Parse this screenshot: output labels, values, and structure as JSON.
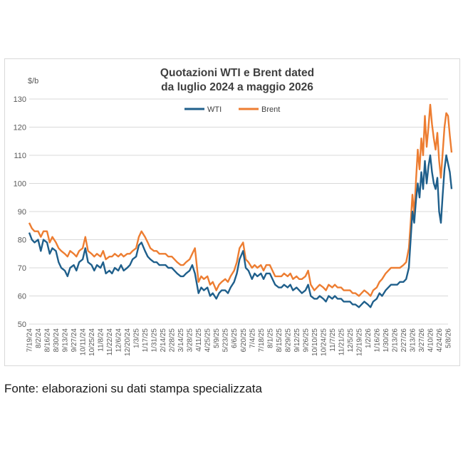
{
  "chart_data": {
    "type": "line",
    "title": [
      "Quotazioni WTI e Brent dated",
      "da luglio 2024 a maggio 2026"
    ],
    "ylabel": "$/b",
    "xlabel": "",
    "ylim": [
      50,
      130
    ],
    "yticks": [
      "50",
      "60",
      "70",
      "80",
      "90",
      "100",
      "110",
      "120",
      "130"
    ],
    "grid": "horizontal",
    "legend_position": "top-center",
    "x_ticks": [
      "7/19/24",
      "8/2/24",
      "8/16/24",
      "8/30/24",
      "9/13/24",
      "9/27/24",
      "10/11/24",
      "10/25/24",
      "11/8/24",
      "11/22/24",
      "12/6/24",
      "12/20/24",
      "1/3/25",
      "1/17/25",
      "1/31/25",
      "2/14/25",
      "2/28/25",
      "3/14/25",
      "3/28/25",
      "4/11/25",
      "4/25/25",
      "5/9/25",
      "5/23/25",
      "6/6/25",
      "6/20/25",
      "7/4/25",
      "7/18/25",
      "8/1/25",
      "8/15/25",
      "8/29/25",
      "9/12/25",
      "9/26/25",
      "10/10/25",
      "10/24/25",
      "11/7/25",
      "11/21/25",
      "12/5/25",
      "12/19/25",
      "1/2/26",
      "1/16/26",
      "1/30/26",
      "2/13/26",
      "2/27/26",
      "3/13/26",
      "3/27/26",
      "4/10/26",
      "4/24/26",
      "5/8/26"
    ],
    "series": [
      {
        "name": "WTI",
        "color": "#1f5f8b",
        "points": [
          [
            0,
            82.5
          ],
          [
            0.3,
            80
          ],
          [
            0.6,
            79
          ],
          [
            1,
            80
          ],
          [
            1.3,
            76
          ],
          [
            1.6,
            80
          ],
          [
            2,
            79
          ],
          [
            2.3,
            75
          ],
          [
            2.6,
            77
          ],
          [
            3,
            76
          ],
          [
            3.3,
            72
          ],
          [
            3.6,
            70
          ],
          [
            4,
            69
          ],
          [
            4.3,
            67
          ],
          [
            4.6,
            70
          ],
          [
            5,
            71
          ],
          [
            5.3,
            69
          ],
          [
            5.6,
            72
          ],
          [
            6,
            73
          ],
          [
            6.3,
            77
          ],
          [
            6.6,
            72
          ],
          [
            7,
            71
          ],
          [
            7.3,
            69
          ],
          [
            7.6,
            71
          ],
          [
            8,
            70
          ],
          [
            8.3,
            72
          ],
          [
            8.6,
            68
          ],
          [
            9,
            69
          ],
          [
            9.3,
            68
          ],
          [
            9.6,
            70
          ],
          [
            10,
            69
          ],
          [
            10.3,
            71
          ],
          [
            10.6,
            69
          ],
          [
            11,
            70
          ],
          [
            11.3,
            71
          ],
          [
            11.6,
            73
          ],
          [
            12,
            74
          ],
          [
            12.3,
            78
          ],
          [
            12.6,
            79
          ],
          [
            13,
            76
          ],
          [
            13.3,
            74
          ],
          [
            13.6,
            73
          ],
          [
            14,
            72
          ],
          [
            14.3,
            72
          ],
          [
            14.6,
            71
          ],
          [
            15,
            71
          ],
          [
            15.3,
            71
          ],
          [
            15.6,
            70
          ],
          [
            16,
            70
          ],
          [
            16.3,
            69
          ],
          [
            16.6,
            68
          ],
          [
            17,
            67
          ],
          [
            17.3,
            67
          ],
          [
            17.6,
            68
          ],
          [
            18,
            69
          ],
          [
            18.3,
            71
          ],
          [
            18.6,
            68
          ],
          [
            19,
            61
          ],
          [
            19.3,
            63
          ],
          [
            19.6,
            62
          ],
          [
            20,
            63
          ],
          [
            20.3,
            60
          ],
          [
            20.6,
            61
          ],
          [
            21,
            59
          ],
          [
            21.3,
            61
          ],
          [
            21.6,
            62
          ],
          [
            22,
            62
          ],
          [
            22.3,
            61
          ],
          [
            22.6,
            63
          ],
          [
            23,
            65
          ],
          [
            23.3,
            68
          ],
          [
            23.6,
            73
          ],
          [
            24,
            76
          ],
          [
            24.3,
            70
          ],
          [
            24.6,
            69
          ],
          [
            25,
            66
          ],
          [
            25.3,
            68
          ],
          [
            25.6,
            67
          ],
          [
            26,
            68
          ],
          [
            26.3,
            66
          ],
          [
            26.6,
            68
          ],
          [
            27,
            68
          ],
          [
            27.3,
            66
          ],
          [
            27.6,
            64
          ],
          [
            28,
            63
          ],
          [
            28.3,
            63
          ],
          [
            28.6,
            64
          ],
          [
            29,
            63
          ],
          [
            29.3,
            64
          ],
          [
            29.6,
            62
          ],
          [
            30,
            63
          ],
          [
            30.3,
            62
          ],
          [
            30.6,
            61
          ],
          [
            31,
            62
          ],
          [
            31.3,
            64
          ],
          [
            31.6,
            60
          ],
          [
            32,
            59
          ],
          [
            32.3,
            59
          ],
          [
            32.6,
            60
          ],
          [
            33,
            59
          ],
          [
            33.3,
            58
          ],
          [
            33.6,
            60
          ],
          [
            34,
            59
          ],
          [
            34.3,
            60
          ],
          [
            34.6,
            59
          ],
          [
            35,
            59
          ],
          [
            35.3,
            58
          ],
          [
            35.6,
            58
          ],
          [
            36,
            58
          ],
          [
            36.3,
            57
          ],
          [
            36.6,
            57
          ],
          [
            37,
            56
          ],
          [
            37.3,
            57
          ],
          [
            37.6,
            58
          ],
          [
            38,
            57
          ],
          [
            38.3,
            56
          ],
          [
            38.6,
            58
          ],
          [
            39,
            59
          ],
          [
            39.3,
            61
          ],
          [
            39.6,
            60
          ],
          [
            40,
            62
          ],
          [
            40.3,
            63
          ],
          [
            40.6,
            64
          ],
          [
            41,
            64
          ],
          [
            41.3,
            64
          ],
          [
            41.6,
            65
          ],
          [
            42,
            65
          ],
          [
            42.3,
            66
          ],
          [
            42.6,
            70
          ],
          [
            42.8,
            80
          ],
          [
            43,
            90
          ],
          [
            43.2,
            86
          ],
          [
            43.4,
            94
          ],
          [
            43.6,
            100
          ],
          [
            43.8,
            95
          ],
          [
            44,
            104
          ],
          [
            44.2,
            98
          ],
          [
            44.4,
            108
          ],
          [
            44.6,
            100
          ],
          [
            44.8,
            106
          ],
          [
            45,
            110
          ],
          [
            45.2,
            104
          ],
          [
            45.4,
            100
          ],
          [
            45.6,
            98
          ],
          [
            45.8,
            102
          ],
          [
            46,
            90
          ],
          [
            46.2,
            86
          ],
          [
            46.4,
            96
          ],
          [
            46.6,
            105
          ],
          [
            46.8,
            110
          ],
          [
            47,
            107
          ],
          [
            47.2,
            104
          ],
          [
            47.4,
            98
          ]
        ]
      },
      {
        "name": "Brent",
        "color": "#ed7d31",
        "points": [
          [
            0,
            86
          ],
          [
            0.3,
            84
          ],
          [
            0.6,
            83
          ],
          [
            1,
            83
          ],
          [
            1.3,
            81
          ],
          [
            1.6,
            83
          ],
          [
            2,
            83
          ],
          [
            2.3,
            79
          ],
          [
            2.6,
            81
          ],
          [
            3,
            79
          ],
          [
            3.3,
            77
          ],
          [
            3.6,
            76
          ],
          [
            4,
            75
          ],
          [
            4.3,
            74
          ],
          [
            4.6,
            76
          ],
          [
            5,
            75
          ],
          [
            5.3,
            74
          ],
          [
            5.6,
            76
          ],
          [
            6,
            77
          ],
          [
            6.3,
            81
          ],
          [
            6.6,
            76
          ],
          [
            7,
            75
          ],
          [
            7.3,
            74
          ],
          [
            7.6,
            75
          ],
          [
            8,
            74
          ],
          [
            8.3,
            76
          ],
          [
            8.6,
            73
          ],
          [
            9,
            74
          ],
          [
            9.3,
            74
          ],
          [
            9.6,
            75
          ],
          [
            10,
            74
          ],
          [
            10.3,
            75
          ],
          [
            10.6,
            74
          ],
          [
            11,
            75
          ],
          [
            11.3,
            75
          ],
          [
            11.6,
            76
          ],
          [
            12,
            77
          ],
          [
            12.3,
            81
          ],
          [
            12.6,
            83
          ],
          [
            13,
            81
          ],
          [
            13.3,
            79
          ],
          [
            13.6,
            77
          ],
          [
            14,
            76
          ],
          [
            14.3,
            76
          ],
          [
            14.6,
            75
          ],
          [
            15,
            75
          ],
          [
            15.3,
            75
          ],
          [
            15.6,
            74
          ],
          [
            16,
            74
          ],
          [
            16.3,
            73
          ],
          [
            16.6,
            72
          ],
          [
            17,
            71
          ],
          [
            17.3,
            71
          ],
          [
            17.6,
            72
          ],
          [
            18,
            73
          ],
          [
            18.3,
            75
          ],
          [
            18.6,
            77
          ],
          [
            19,
            65
          ],
          [
            19.3,
            67
          ],
          [
            19.6,
            66
          ],
          [
            20,
            67
          ],
          [
            20.3,
            64
          ],
          [
            20.6,
            65
          ],
          [
            21,
            62
          ],
          [
            21.3,
            64
          ],
          [
            21.6,
            65
          ],
          [
            22,
            66
          ],
          [
            22.3,
            65
          ],
          [
            22.6,
            67
          ],
          [
            23,
            69
          ],
          [
            23.3,
            72
          ],
          [
            23.6,
            77
          ],
          [
            24,
            79
          ],
          [
            24.3,
            73
          ],
          [
            24.6,
            72
          ],
          [
            25,
            70
          ],
          [
            25.3,
            71
          ],
          [
            25.6,
            70
          ],
          [
            26,
            71
          ],
          [
            26.3,
            69
          ],
          [
            26.6,
            71
          ],
          [
            27,
            71
          ],
          [
            27.3,
            69
          ],
          [
            27.6,
            67
          ],
          [
            28,
            67
          ],
          [
            28.3,
            67
          ],
          [
            28.6,
            68
          ],
          [
            29,
            67
          ],
          [
            29.3,
            68
          ],
          [
            29.6,
            66
          ],
          [
            30,
            67
          ],
          [
            30.3,
            66
          ],
          [
            30.6,
            66
          ],
          [
            31,
            67
          ],
          [
            31.3,
            69
          ],
          [
            31.6,
            64
          ],
          [
            32,
            62
          ],
          [
            32.3,
            63
          ],
          [
            32.6,
            64
          ],
          [
            33,
            63
          ],
          [
            33.3,
            62
          ],
          [
            33.6,
            64
          ],
          [
            34,
            63
          ],
          [
            34.3,
            64
          ],
          [
            34.6,
            63
          ],
          [
            35,
            63
          ],
          [
            35.3,
            62
          ],
          [
            35.6,
            62
          ],
          [
            36,
            62
          ],
          [
            36.3,
            61
          ],
          [
            36.6,
            61
          ],
          [
            37,
            60
          ],
          [
            37.3,
            61
          ],
          [
            37.6,
            62
          ],
          [
            38,
            61
          ],
          [
            38.3,
            60
          ],
          [
            38.6,
            62
          ],
          [
            39,
            63
          ],
          [
            39.3,
            65
          ],
          [
            39.6,
            66
          ],
          [
            40,
            68
          ],
          [
            40.3,
            69
          ],
          [
            40.6,
            70
          ],
          [
            41,
            70
          ],
          [
            41.3,
            70
          ],
          [
            41.6,
            70
          ],
          [
            42,
            71
          ],
          [
            42.3,
            72
          ],
          [
            42.6,
            77
          ],
          [
            42.8,
            86
          ],
          [
            43,
            96
          ],
          [
            43.2,
            89
          ],
          [
            43.4,
            101
          ],
          [
            43.6,
            112
          ],
          [
            43.8,
            105
          ],
          [
            44,
            116
          ],
          [
            44.2,
            110
          ],
          [
            44.4,
            124
          ],
          [
            44.6,
            113
          ],
          [
            44.8,
            120
          ],
          [
            45,
            128
          ],
          [
            45.2,
            121
          ],
          [
            45.4,
            116
          ],
          [
            45.6,
            112
          ],
          [
            45.8,
            118
          ],
          [
            46,
            108
          ],
          [
            46.2,
            102
          ],
          [
            46.4,
            111
          ],
          [
            46.6,
            120
          ],
          [
            46.8,
            125
          ],
          [
            47,
            124
          ],
          [
            47.2,
            117
          ],
          [
            47.4,
            111
          ]
        ]
      }
    ]
  },
  "footer": {
    "source": "Fonte: elaborazioni su dati stampa specializzata"
  }
}
